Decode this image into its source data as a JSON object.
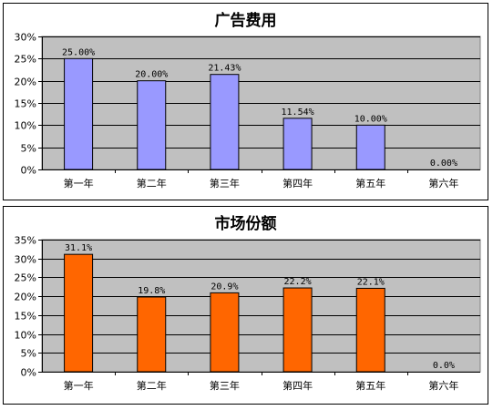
{
  "chart_data": [
    {
      "type": "bar",
      "title": "广告费用",
      "categories": [
        "第一年",
        "第二年",
        "第三年",
        "第四年",
        "第五年",
        "第六年"
      ],
      "values": [
        25.0,
        20.0,
        21.43,
        11.54,
        10.0,
        0.0
      ],
      "data_labels": [
        "25.00%",
        "20.00%",
        "21.43%",
        "11.54%",
        "10.00%",
        "0.00%"
      ],
      "yticks": [
        "0%",
        "5%",
        "10%",
        "15%",
        "20%",
        "25%",
        "30%"
      ],
      "ylim": [
        0,
        30
      ],
      "grid": true,
      "bar_color": "#9999ff",
      "plot_bg": "#c0c0c0"
    },
    {
      "type": "bar",
      "title": "市场份额",
      "categories": [
        "第一年",
        "第二年",
        "第三年",
        "第四年",
        "第五年",
        "第六年"
      ],
      "values": [
        31.1,
        19.8,
        20.9,
        22.2,
        22.1,
        0.0
      ],
      "data_labels": [
        "31.1%",
        "19.8%",
        "20.9%",
        "22.2%",
        "22.1%",
        "0.0%"
      ],
      "yticks": [
        "0%",
        "5%",
        "10%",
        "15%",
        "20%",
        "25%",
        "30%",
        "35%"
      ],
      "ylim": [
        0,
        35
      ],
      "grid": true,
      "bar_color": "#ff6600",
      "plot_bg": "#c0c0c0"
    }
  ]
}
